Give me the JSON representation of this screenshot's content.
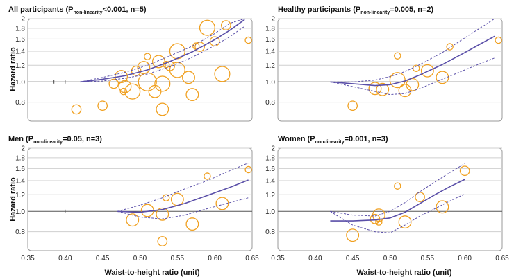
{
  "figure": {
    "y_axis_title": "Hazard ratio",
    "x_axis_title": "Waist-to-height ratio (unit)"
  },
  "colors": {
    "curve": "#5a4fa8",
    "bubble": "#f0a020",
    "reference_line": "#555555",
    "grid": "#cfcfcf"
  },
  "chart_data": [
    {
      "type": "scatter",
      "panel": "all",
      "title_main": "All participants (P",
      "title_sub": "non-linearity",
      "title_rest": "<0.001, n=5)",
      "xlim": [
        0.35,
        0.65
      ],
      "ylim": [
        0.65,
        2.0
      ],
      "y_scale": "log",
      "xticks": [
        "0.35",
        "0.40",
        "0.45",
        "0.50",
        "0.55",
        "0.60",
        "0.65"
      ],
      "yticks": [
        "2",
        "1.8",
        "1.6",
        "1.4",
        "1.2",
        "1.0",
        "0.8"
      ],
      "knots": [
        0.385,
        0.4
      ],
      "curve": {
        "x": [
          0.42,
          0.45,
          0.48,
          0.51,
          0.54,
          0.57,
          0.6,
          0.62,
          0.64
        ],
        "y": [
          1.0,
          1.03,
          1.07,
          1.14,
          1.25,
          1.39,
          1.59,
          1.76,
          1.98
        ]
      },
      "ci_upper": {
        "x": [
          0.42,
          0.45,
          0.48,
          0.51,
          0.54,
          0.57,
          0.6,
          0.62,
          0.64
        ],
        "y": [
          1.0,
          1.05,
          1.11,
          1.2,
          1.33,
          1.48,
          1.7,
          1.9,
          2.0
        ]
      },
      "ci_lower": {
        "x": [
          0.42,
          0.45,
          0.48,
          0.51,
          0.54,
          0.57,
          0.6,
          0.62,
          0.64
        ],
        "y": [
          1.0,
          1.01,
          1.04,
          1.09,
          1.18,
          1.31,
          1.49,
          1.64,
          1.84
        ]
      },
      "studies": [
        {
          "x": 0.415,
          "y": 0.74,
          "w": 2
        },
        {
          "x": 0.45,
          "y": 0.77,
          "w": 2
        },
        {
          "x": 0.465,
          "y": 0.98,
          "w": 2
        },
        {
          "x": 0.475,
          "y": 1.06,
          "w": 3
        },
        {
          "x": 0.478,
          "y": 0.9,
          "w": 1
        },
        {
          "x": 0.48,
          "y": 0.95,
          "w": 3
        },
        {
          "x": 0.49,
          "y": 0.9,
          "w": 4
        },
        {
          "x": 0.495,
          "y": 1.13,
          "w": 2
        },
        {
          "x": 0.505,
          "y": 1.17,
          "w": 3
        },
        {
          "x": 0.51,
          "y": 1.32,
          "w": 1
        },
        {
          "x": 0.51,
          "y": 1.0,
          "w": 5
        },
        {
          "x": 0.52,
          "y": 0.9,
          "w": 3
        },
        {
          "x": 0.525,
          "y": 1.25,
          "w": 3
        },
        {
          "x": 0.53,
          "y": 0.98,
          "w": 4
        },
        {
          "x": 0.53,
          "y": 0.74,
          "w": 3
        },
        {
          "x": 0.535,
          "y": 1.21,
          "w": 1
        },
        {
          "x": 0.54,
          "y": 1.19,
          "w": 2
        },
        {
          "x": 0.55,
          "y": 1.14,
          "w": 4
        },
        {
          "x": 0.55,
          "y": 1.4,
          "w": 4
        },
        {
          "x": 0.565,
          "y": 1.05,
          "w": 3
        },
        {
          "x": 0.57,
          "y": 0.87,
          "w": 3
        },
        {
          "x": 0.575,
          "y": 1.48,
          "w": 1
        },
        {
          "x": 0.58,
          "y": 1.47,
          "w": 2
        },
        {
          "x": 0.59,
          "y": 1.81,
          "w": 4
        },
        {
          "x": 0.6,
          "y": 1.56,
          "w": 2
        },
        {
          "x": 0.61,
          "y": 1.09,
          "w": 4
        },
        {
          "x": 0.615,
          "y": 1.86,
          "w": 2
        },
        {
          "x": 0.645,
          "y": 1.58,
          "w": 1
        }
      ]
    },
    {
      "type": "scatter",
      "panel": "healthy",
      "title_main": "Healthy participants (P",
      "title_sub": "non-linearity",
      "title_rest": "=0.005, n=2)",
      "xlim": [
        0.35,
        0.65
      ],
      "ylim": [
        0.65,
        2.0
      ],
      "y_scale": "log",
      "xticks": [
        "0.35",
        "0.40",
        "0.45",
        "0.50",
        "0.55",
        "0.60",
        "0.65"
      ],
      "yticks": [
        "2",
        "1.8",
        "1.6",
        "1.4",
        "1.2",
        "1.0",
        "0.8"
      ],
      "knots": [],
      "curve": {
        "x": [
          0.42,
          0.45,
          0.48,
          0.5,
          0.52,
          0.54,
          0.57,
          0.6,
          0.62,
          0.64
        ],
        "y": [
          1.0,
          0.98,
          0.96,
          0.97,
          1.01,
          1.08,
          1.21,
          1.38,
          1.51,
          1.65
        ]
      },
      "ci_upper": {
        "x": [
          0.42,
          0.45,
          0.48,
          0.5,
          0.52,
          0.54,
          0.57,
          0.6,
          0.62,
          0.64
        ],
        "y": [
          1.0,
          1.0,
          1.02,
          1.06,
          1.12,
          1.21,
          1.38,
          1.62,
          1.8,
          2.0
        ]
      },
      "ci_lower": {
        "x": [
          0.42,
          0.45,
          0.48,
          0.5,
          0.52,
          0.54,
          0.57,
          0.6,
          0.62,
          0.64
        ],
        "y": [
          1.0,
          0.95,
          0.9,
          0.87,
          0.88,
          0.93,
          1.03,
          1.14,
          1.22,
          1.3
        ]
      },
      "studies": [
        {
          "x": 0.45,
          "y": 0.77,
          "w": 2
        },
        {
          "x": 0.48,
          "y": 0.93,
          "w": 3
        },
        {
          "x": 0.49,
          "y": 0.92,
          "w": 3
        },
        {
          "x": 0.51,
          "y": 1.33,
          "w": 1
        },
        {
          "x": 0.51,
          "y": 1.02,
          "w": 4
        },
        {
          "x": 0.52,
          "y": 0.91,
          "w": 3
        },
        {
          "x": 0.53,
          "y": 0.97,
          "w": 3
        },
        {
          "x": 0.535,
          "y": 1.16,
          "w": 1
        },
        {
          "x": 0.55,
          "y": 1.13,
          "w": 3
        },
        {
          "x": 0.57,
          "y": 1.05,
          "w": 3
        },
        {
          "x": 0.58,
          "y": 1.47,
          "w": 1
        },
        {
          "x": 0.645,
          "y": 1.58,
          "w": 1
        }
      ]
    },
    {
      "type": "scatter",
      "panel": "men",
      "title_main": "Men (P",
      "title_sub": "non-linearity",
      "title_rest": "=0.05, n=3)",
      "xlim": [
        0.35,
        0.65
      ],
      "ylim": [
        0.65,
        2.0
      ],
      "y_scale": "log",
      "xticks": [
        "0.35",
        "0.40",
        "0.45",
        "0.50",
        "0.55",
        "0.60",
        "0.65"
      ],
      "yticks": [
        "2",
        "1.8",
        "1.6",
        "1.4",
        "1.2",
        "1.0",
        "0.8"
      ],
      "knots": [
        0.4
      ],
      "curve": {
        "x": [
          0.47,
          0.5,
          0.53,
          0.56,
          0.59,
          0.62,
          0.645
        ],
        "y": [
          1.0,
          0.99,
          1.02,
          1.09,
          1.19,
          1.3,
          1.41
        ]
      },
      "ci_upper": {
        "x": [
          0.47,
          0.5,
          0.53,
          0.56,
          0.59,
          0.62,
          0.645
        ],
        "y": [
          1.0,
          1.07,
          1.16,
          1.28,
          1.4,
          1.56,
          1.7
        ]
      },
      "ci_lower": {
        "x": [
          0.47,
          0.5,
          0.53,
          0.56,
          0.59,
          0.62,
          0.645
        ],
        "y": [
          1.0,
          0.94,
          0.92,
          0.96,
          1.03,
          1.1,
          1.16
        ]
      },
      "studies": [
        {
          "x": 0.49,
          "y": 0.91,
          "w": 3
        },
        {
          "x": 0.51,
          "y": 1.01,
          "w": 3
        },
        {
          "x": 0.53,
          "y": 0.97,
          "w": 3
        },
        {
          "x": 0.53,
          "y": 0.72,
          "w": 2
        },
        {
          "x": 0.535,
          "y": 1.16,
          "w": 1
        },
        {
          "x": 0.55,
          "y": 1.14,
          "w": 3
        },
        {
          "x": 0.57,
          "y": 0.87,
          "w": 3
        },
        {
          "x": 0.59,
          "y": 1.47,
          "w": 1
        },
        {
          "x": 0.61,
          "y": 1.09,
          "w": 3
        },
        {
          "x": 0.645,
          "y": 1.58,
          "w": 1
        }
      ]
    },
    {
      "type": "scatter",
      "panel": "women",
      "title_main": "Women (P",
      "title_sub": "non-linearity",
      "title_rest": "=0.001, n=3)",
      "xlim": [
        0.35,
        0.65
      ],
      "ylim": [
        0.65,
        2.0
      ],
      "y_scale": "log",
      "xticks": [
        "0.35",
        "0.40",
        "0.45",
        "0.50",
        "0.55",
        "0.60",
        "0.65"
      ],
      "yticks": [
        "2",
        "1.8",
        "1.6",
        "1.4",
        "1.2",
        "1.0",
        "0.8"
      ],
      "knots": [],
      "curve": {
        "x": [
          0.42,
          0.45,
          0.48,
          0.5,
          0.52,
          0.54,
          0.56,
          0.58,
          0.6
        ],
        "y": [
          0.9,
          0.9,
          0.91,
          0.93,
          0.99,
          1.09,
          1.2,
          1.31,
          1.42
        ]
      },
      "ci_upper": {
        "x": [
          0.42,
          0.45,
          0.48,
          0.5,
          0.52,
          0.54,
          0.56,
          0.58,
          0.6
        ],
        "y": [
          1.0,
          0.96,
          0.95,
          1.0,
          1.1,
          1.24,
          1.38,
          1.53,
          1.69
        ]
      },
      "ci_lower": {
        "x": [
          0.42,
          0.45,
          0.48,
          0.5,
          0.52,
          0.54,
          0.56,
          0.58,
          0.6
        ],
        "y": [
          1.0,
          0.86,
          0.8,
          0.79,
          0.86,
          0.95,
          1.03,
          1.12,
          1.21
        ]
      },
      "studies": [
        {
          "x": 0.45,
          "y": 0.77,
          "w": 3
        },
        {
          "x": 0.48,
          "y": 0.92,
          "w": 2
        },
        {
          "x": 0.485,
          "y": 0.89,
          "w": 1
        },
        {
          "x": 0.485,
          "y": 0.96,
          "w": 3
        },
        {
          "x": 0.51,
          "y": 1.32,
          "w": 1
        },
        {
          "x": 0.52,
          "y": 0.89,
          "w": 3
        },
        {
          "x": 0.54,
          "y": 1.17,
          "w": 2
        },
        {
          "x": 0.57,
          "y": 1.05,
          "w": 3
        },
        {
          "x": 0.6,
          "y": 1.56,
          "w": 2
        }
      ]
    }
  ]
}
